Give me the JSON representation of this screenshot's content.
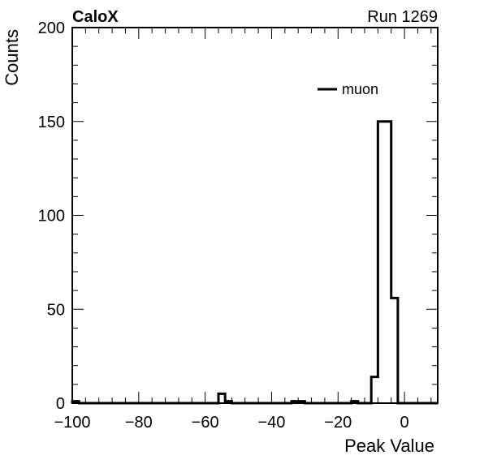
{
  "header": {
    "left_label": "CaloX",
    "right_label": "Run 1269"
  },
  "chart_data": {
    "type": "histogram",
    "xlabel": "Peak Value",
    "ylabel": "Counts",
    "xlim": [
      -100,
      10
    ],
    "ylim": [
      0,
      200
    ],
    "x_ticks": [
      -100,
      -80,
      -60,
      -40,
      -20,
      0
    ],
    "x_tick_labels": [
      "−100",
      "−80",
      "−60",
      "−40",
      "−20",
      "0"
    ],
    "y_ticks": [
      0,
      50,
      100,
      150,
      200
    ],
    "y_tick_labels": [
      "0",
      "50",
      "100",
      "150",
      "200"
    ],
    "legend": {
      "position": "top-right",
      "entries": [
        {
          "label": "muon",
          "color": "#000000"
        }
      ]
    },
    "series": [
      {
        "name": "muon",
        "color": "#000000",
        "bins": [
          {
            "lo": -100,
            "hi": -98,
            "count": 1
          },
          {
            "lo": -56,
            "hi": -54,
            "count": 5
          },
          {
            "lo": -54,
            "hi": -52,
            "count": 1
          },
          {
            "lo": -34,
            "hi": -30,
            "count": 1
          },
          {
            "lo": -16,
            "hi": -14,
            "count": 1
          },
          {
            "lo": -10,
            "hi": -8,
            "count": 14
          },
          {
            "lo": -8,
            "hi": -6,
            "count": 150
          },
          {
            "lo": -6,
            "hi": -4,
            "count": 150
          },
          {
            "lo": -4,
            "hi": -2,
            "count": 56
          }
        ]
      }
    ]
  }
}
